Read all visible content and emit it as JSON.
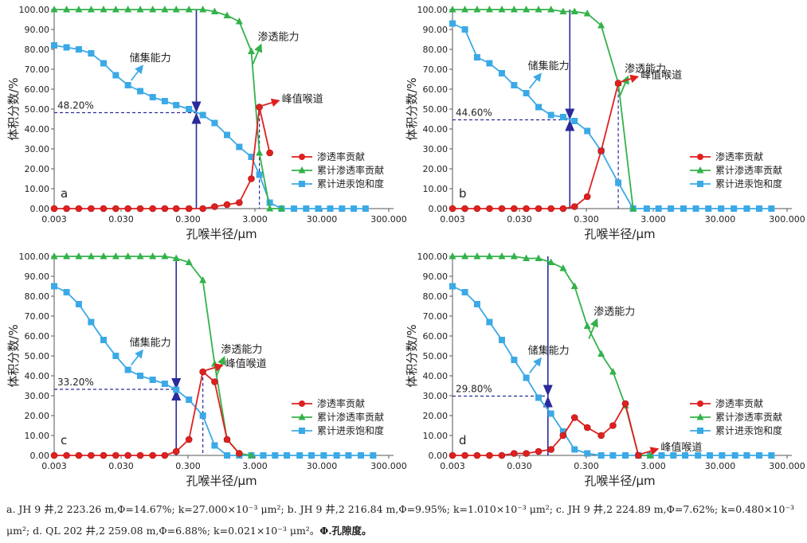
{
  "caption": {
    "text": "a. JH 9 井,2 223.26 m,Φ=14.67%; k=27.000×10⁻³ μm²; b. JH 9 井,2 216.84 m,Φ=9.95%; k=1.010×10⁻³ μm²; c. JH 9 井,2 224.89 m,Φ=7.62%; k=0.480×10⁻³ μm²; d. QL 202 井,2 259.08 m,Φ=6.88%; k=0.021×10⁻³ μm²。",
    "bold_tail": "Φ.孔隙度。"
  },
  "colors": {
    "contribution": "#e02020",
    "cumulative_permeability": "#33b24a",
    "mercury_saturation": "#3ba9e6",
    "guide_line": "#2a2a9a"
  },
  "chart_data": [
    {
      "type": "line",
      "panel": "a",
      "xlabel": "孔喉半径/μm",
      "ylabel": "体积分数/%",
      "x_scale": "log",
      "x_ticks": [
        "0.003",
        "0.030",
        "0.300",
        "3.000",
        "30.000",
        "300.000"
      ],
      "y_ticks": [
        "0.00",
        "10.00",
        "20.00",
        "30.00",
        "40.00",
        "50.00",
        "60.00",
        "70.00",
        "80.00",
        "90.00",
        "100.00"
      ],
      "ylim": [
        0,
        100
      ],
      "legend": [
        "渗透率贡献",
        "累计渗透率贡献",
        "累计进汞饱和度"
      ],
      "legend_position": "right",
      "annotations": {
        "storage": "储集能力",
        "permeability": "渗透能力",
        "peak": "峰值喉道",
        "percent": "48.20%"
      },
      "cross_x": 0.4,
      "cross_y": 48.2,
      "peak_x": 3.5,
      "series": [
        {
          "name": "渗透率贡献",
          "x": [
            0.003,
            0.0046,
            0.007,
            0.0107,
            0.0164,
            0.025,
            0.038,
            0.058,
            0.089,
            0.135,
            0.2,
            0.31,
            0.5,
            0.75,
            1.15,
            1.75,
            2.65,
            3.5,
            5.0
          ],
          "y": [
            0,
            0,
            0,
            0,
            0,
            0,
            0,
            0,
            0,
            0,
            0,
            0,
            0,
            1,
            2,
            3,
            15,
            51,
            28
          ]
        },
        {
          "name": "累计渗透率贡献",
          "x": [
            0.003,
            0.0046,
            0.007,
            0.0107,
            0.0164,
            0.025,
            0.038,
            0.058,
            0.089,
            0.135,
            0.2,
            0.31,
            0.5,
            0.75,
            1.15,
            1.75,
            2.65,
            3.5,
            5.0,
            7.5
          ],
          "y": [
            100,
            100,
            100,
            100,
            100,
            100,
            100,
            100,
            100,
            100,
            100,
            100,
            100,
            99,
            97,
            94,
            79,
            28,
            0,
            0
          ]
        },
        {
          "name": "累计进汞饱和度",
          "x": [
            0.003,
            0.0046,
            0.007,
            0.0107,
            0.0164,
            0.025,
            0.038,
            0.058,
            0.089,
            0.135,
            0.2,
            0.31,
            0.5,
            0.75,
            1.15,
            1.75,
            2.65,
            3.5,
            5.0,
            7.5,
            11.5,
            17.5,
            26.5,
            40.0,
            60.0,
            90.0,
            135.0
          ],
          "y": [
            82,
            81,
            80,
            78,
            73,
            67,
            62,
            59,
            56,
            54,
            52,
            50,
            47,
            43,
            37,
            31,
            26,
            17,
            3,
            0,
            0,
            0,
            0,
            0,
            0,
            0,
            0
          ]
        }
      ]
    },
    {
      "type": "line",
      "panel": "b",
      "xlabel": "孔喉半径/μm",
      "ylabel": "体积分数/%",
      "x_scale": "log",
      "x_ticks": [
        "0.003",
        "0.030",
        "0.300",
        "3.000",
        "30.000",
        "300.000"
      ],
      "y_ticks": [
        "0.00",
        "10.00",
        "20.00",
        "30.00",
        "40.00",
        "50.00",
        "60.00",
        "70.00",
        "80.00",
        "90.00",
        "100.00"
      ],
      "ylim": [
        0,
        100
      ],
      "legend": [
        "渗透率贡献",
        "累计渗透率贡献",
        "累计进汞饱和度"
      ],
      "legend_position": "right",
      "annotations": {
        "storage": "储集能力",
        "permeability": "渗透能力",
        "peak": "峰值喉道",
        "percent": "44.60%"
      },
      "cross_x": 0.17,
      "cross_y": 44.6,
      "peak_x": 0.9,
      "series": [
        {
          "name": "渗透率贡献",
          "x": [
            0.003,
            0.0046,
            0.007,
            0.0107,
            0.0164,
            0.025,
            0.038,
            0.058,
            0.089,
            0.135,
            0.2,
            0.31,
            0.5,
            0.9
          ],
          "y": [
            0,
            0,
            0,
            0,
            0,
            0,
            0,
            0,
            0,
            0,
            1,
            6,
            29,
            63
          ]
        },
        {
          "name": "累计渗透率贡献",
          "x": [
            0.003,
            0.0046,
            0.007,
            0.0107,
            0.0164,
            0.025,
            0.038,
            0.058,
            0.089,
            0.135,
            0.2,
            0.31,
            0.5,
            0.9,
            1.5
          ],
          "y": [
            100,
            100,
            100,
            100,
            100,
            100,
            100,
            100,
            100,
            99,
            99,
            98,
            92,
            63,
            0
          ]
        },
        {
          "name": "累计进汞饱和度",
          "x": [
            0.003,
            0.0046,
            0.007,
            0.0107,
            0.0164,
            0.025,
            0.038,
            0.058,
            0.089,
            0.135,
            0.2,
            0.31,
            0.5,
            0.9,
            1.5,
            2.4,
            3.6,
            5.5,
            8.5,
            13.0,
            20.0,
            31.0,
            48.0,
            75.0,
            115.0,
            175.0
          ],
          "y": [
            93,
            90,
            76,
            73,
            68,
            62,
            58,
            51,
            47,
            46,
            44,
            39,
            29,
            13,
            0,
            0,
            0,
            0,
            0,
            0,
            0,
            0,
            0,
            0,
            0,
            0
          ]
        }
      ]
    },
    {
      "type": "line",
      "panel": "c",
      "xlabel": "孔喉半径/μm",
      "ylabel": "体积分数/%",
      "x_scale": "log",
      "x_ticks": [
        "0.003",
        "0.030",
        "0.300",
        "3.000",
        "30.000",
        "300.000"
      ],
      "y_ticks": [
        "0.00",
        "10.00",
        "20.00",
        "30.00",
        "40.00",
        "50.00",
        "60.00",
        "70.00",
        "80.00",
        "90.00",
        "100.00"
      ],
      "ylim": [
        0,
        100
      ],
      "legend": [
        "渗透率贡献",
        "累计渗透率贡献",
        "累计进汞饱和度"
      ],
      "legend_position": "right",
      "annotations": {
        "storage": "储集能力",
        "permeability": "渗透能力",
        "peak": "峰值喉道",
        "percent": "33.20%"
      },
      "cross_x": 0.2,
      "cross_y": 33.2,
      "peak_x": 0.5,
      "series": [
        {
          "name": "渗透率贡献",
          "x": [
            0.003,
            0.0046,
            0.007,
            0.0107,
            0.0164,
            0.025,
            0.038,
            0.058,
            0.089,
            0.135,
            0.2,
            0.31,
            0.5,
            0.75,
            1.15,
            1.75
          ],
          "y": [
            0,
            0,
            0,
            0,
            0,
            0,
            0,
            0,
            0,
            0,
            2,
            8,
            42,
            37,
            8,
            1
          ]
        },
        {
          "name": "累计渗透率贡献",
          "x": [
            0.003,
            0.0046,
            0.007,
            0.0107,
            0.0164,
            0.025,
            0.038,
            0.058,
            0.089,
            0.135,
            0.2,
            0.31,
            0.5,
            0.75,
            1.15,
            1.75,
            2.65
          ],
          "y": [
            100,
            100,
            100,
            100,
            100,
            100,
            100,
            100,
            100,
            100,
            99,
            97,
            88,
            46,
            8,
            1,
            0
          ]
        },
        {
          "name": "累计进汞饱和度",
          "x": [
            0.003,
            0.0046,
            0.007,
            0.0107,
            0.0164,
            0.025,
            0.038,
            0.058,
            0.089,
            0.135,
            0.2,
            0.31,
            0.5,
            0.75,
            1.15,
            1.75,
            2.65,
            4.0,
            6.0,
            9.0,
            14.0,
            21.0,
            32.0,
            50.0,
            75.0,
            115.0,
            175.0
          ],
          "y": [
            85,
            82,
            76,
            67,
            58,
            50,
            43,
            40,
            38,
            36,
            33,
            28,
            20,
            5,
            0,
            0,
            0,
            0,
            0,
            0,
            0,
            0,
            0,
            0,
            0,
            0,
            0
          ]
        }
      ]
    },
    {
      "type": "line",
      "panel": "d",
      "xlabel": "孔喉半径/μm",
      "ylabel": "体积分数/%",
      "x_scale": "log",
      "x_ticks": [
        "0.003",
        "0.030",
        "0.300",
        "3.000",
        "30.000",
        "300.000"
      ],
      "y_ticks": [
        "0.00",
        "10.00",
        "20.00",
        "30.00",
        "40.00",
        "50.00",
        "60.00",
        "70.00",
        "80.00",
        "90.00",
        "100.00"
      ],
      "ylim": [
        0,
        100
      ],
      "legend": [
        "渗透率贡献",
        "累计渗透率贡献",
        "累计进汞饱和度"
      ],
      "legend_position": "right",
      "annotations": {
        "storage": "储集能力",
        "permeability": "渗透能力",
        "peak": "峰值喉道",
        "percent": "29.80%"
      },
      "cross_x": 0.08,
      "cross_y": 29.8,
      "peak_x": 1.8,
      "series": [
        {
          "name": "渗透率贡献",
          "x": [
            0.003,
            0.0046,
            0.007,
            0.0107,
            0.0164,
            0.025,
            0.038,
            0.058,
            0.089,
            0.135,
            0.2,
            0.31,
            0.5,
            0.75,
            1.15,
            1.8
          ],
          "y": [
            0,
            0,
            0,
            0,
            0,
            1,
            1,
            2,
            3,
            10,
            19,
            14,
            10,
            15,
            26,
            0
          ]
        },
        {
          "name": "累计渗透率贡献",
          "x": [
            0.003,
            0.0046,
            0.007,
            0.0107,
            0.0164,
            0.025,
            0.038,
            0.058,
            0.089,
            0.135,
            0.2,
            0.31,
            0.5,
            0.75,
            1.15,
            1.8,
            2.7
          ],
          "y": [
            100,
            100,
            100,
            100,
            100,
            100,
            99,
            99,
            97,
            94,
            85,
            65,
            51,
            42,
            25,
            0,
            0
          ]
        },
        {
          "name": "累计进汞饱和度",
          "x": [
            0.003,
            0.0046,
            0.007,
            0.0107,
            0.0164,
            0.025,
            0.038,
            0.058,
            0.089,
            0.135,
            0.2,
            0.31,
            0.5,
            0.75,
            1.15,
            1.8,
            2.7,
            4.0,
            6.0,
            9.0,
            14.0,
            21.0,
            32.0,
            50.0,
            75.0,
            115.0,
            175.0
          ],
          "y": [
            85,
            82,
            76,
            67,
            58,
            48,
            39,
            29,
            21,
            12,
            3,
            1,
            0,
            0,
            0,
            0,
            0,
            0,
            0,
            0,
            0,
            0,
            0,
            0,
            0,
            0,
            0
          ]
        }
      ]
    }
  ]
}
